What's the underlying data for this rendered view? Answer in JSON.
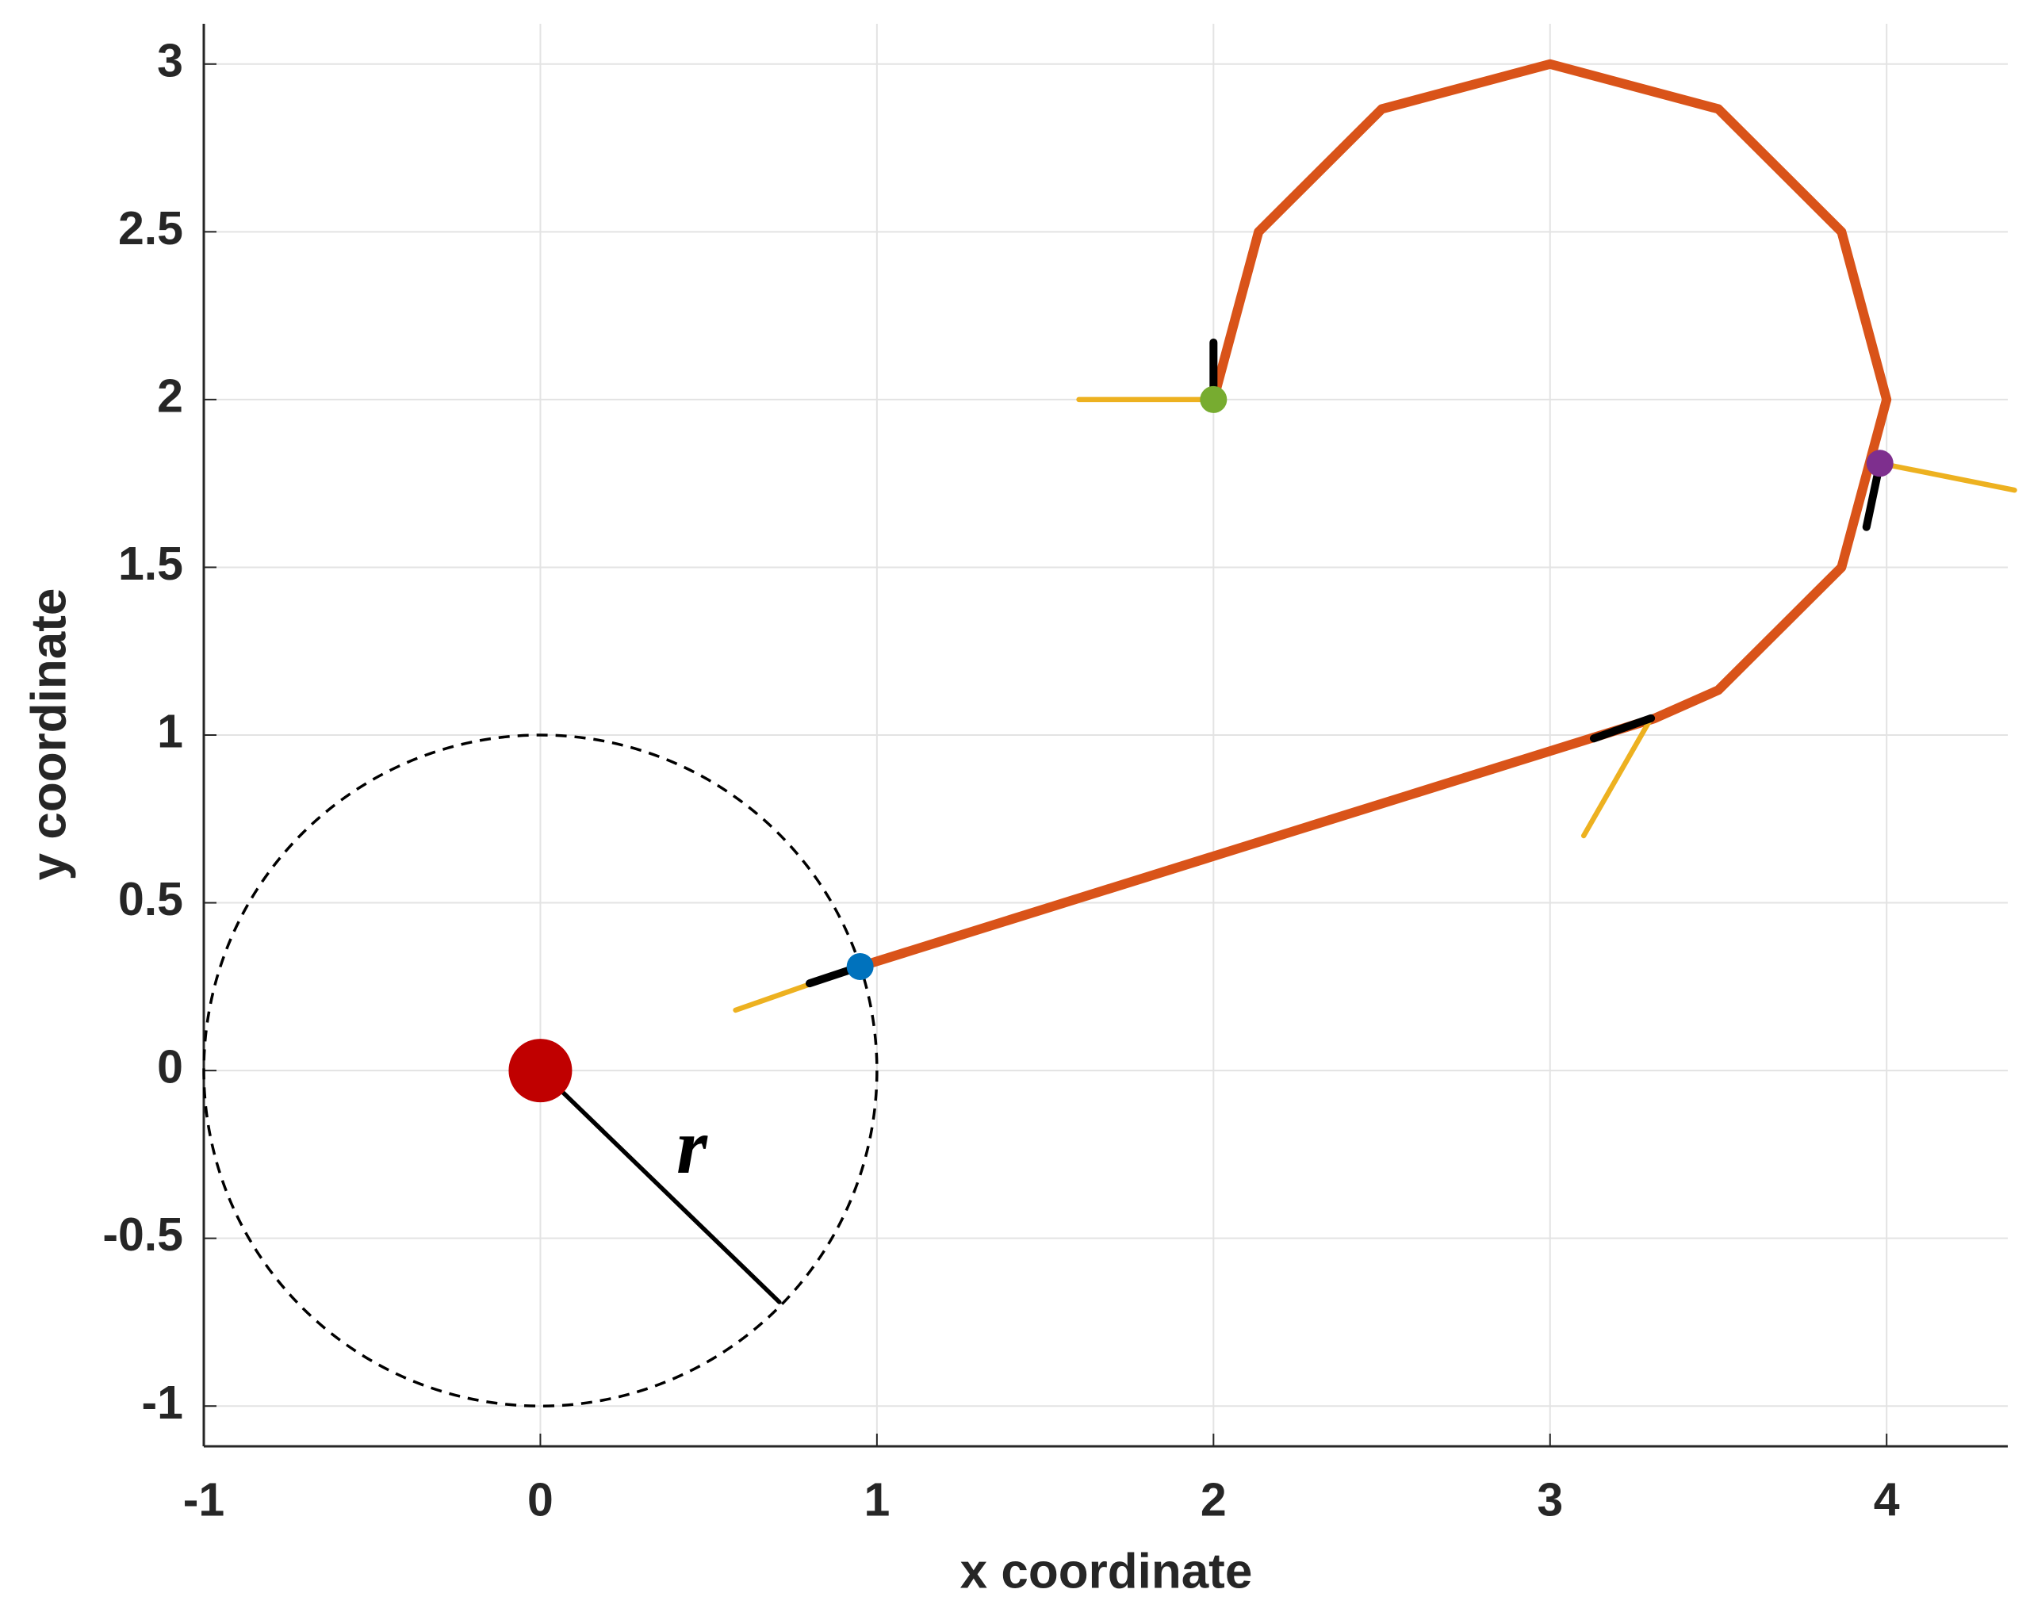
{
  "chart_data": {
    "type": "line",
    "xlabel": "x coordinate",
    "ylabel": "y coordinate",
    "xlim": [
      -1,
      4.36
    ],
    "ylim": [
      -1.12,
      3.12
    ],
    "xticks": [
      -1,
      0,
      1,
      2,
      3,
      4
    ],
    "yticks": [
      -1,
      -0.5,
      0,
      0.5,
      1,
      1.5,
      2,
      2.5,
      3
    ],
    "grid": true,
    "circles": [
      {
        "cx": 0,
        "cy": 0,
        "r": 1,
        "color": "#000000",
        "dash": true
      }
    ],
    "radius": {
      "color": "#000000",
      "x": [
        0,
        0.71
      ],
      "y": [
        0,
        -0.69
      ]
    },
    "annotation": {
      "text": "r",
      "x": 0.45,
      "y": -0.25
    },
    "series": [
      {
        "color": "#d95319",
        "x": [
          2,
          2.134,
          2.5,
          3,
          3.5,
          3.866,
          4,
          3.866,
          3.5,
          3.309,
          0.95
        ],
        "y": [
          2,
          2.5,
          2.866,
          3,
          2.866,
          2.5,
          2,
          1.5,
          1.134,
          1.049,
          0.31
        ]
      }
    ],
    "headings": [
      {
        "color": "#edb120",
        "x": [
          2,
          1.6
        ],
        "y": [
          2,
          2
        ]
      },
      {
        "color": "#edb120",
        "x": [
          3.98,
          4.38
        ],
        "y": [
          1.81,
          1.73
        ]
      },
      {
        "color": "#edb120",
        "x": [
          3.3,
          3.1
        ],
        "y": [
          1.05,
          0.7
        ]
      },
      {
        "color": "#edb120",
        "x": [
          0.95,
          0.58
        ],
        "y": [
          0.31,
          0.18
        ]
      }
    ],
    "tangents": [
      {
        "color": "#000000",
        "x": [
          2,
          2
        ],
        "y": [
          2,
          2.17
        ]
      },
      {
        "color": "#000000",
        "x": [
          3.98,
          3.94
        ],
        "y": [
          1.81,
          1.62
        ]
      },
      {
        "color": "#000000",
        "x": [
          3.3,
          3.13
        ],
        "y": [
          1.05,
          0.99
        ]
      },
      {
        "color": "#000000",
        "x": [
          0.95,
          0.8
        ],
        "y": [
          0.31,
          0.26
        ]
      }
    ],
    "points": [
      {
        "color": "#77ac30",
        "x": 2,
        "y": 2
      },
      {
        "color": "#7e2f8e",
        "x": 3.98,
        "y": 1.81
      },
      {
        "color": "#0072bd",
        "x": 0.95,
        "y": 0.31
      }
    ],
    "origin": {
      "color": "#c00000",
      "x": 0,
      "y": 0
    }
  }
}
